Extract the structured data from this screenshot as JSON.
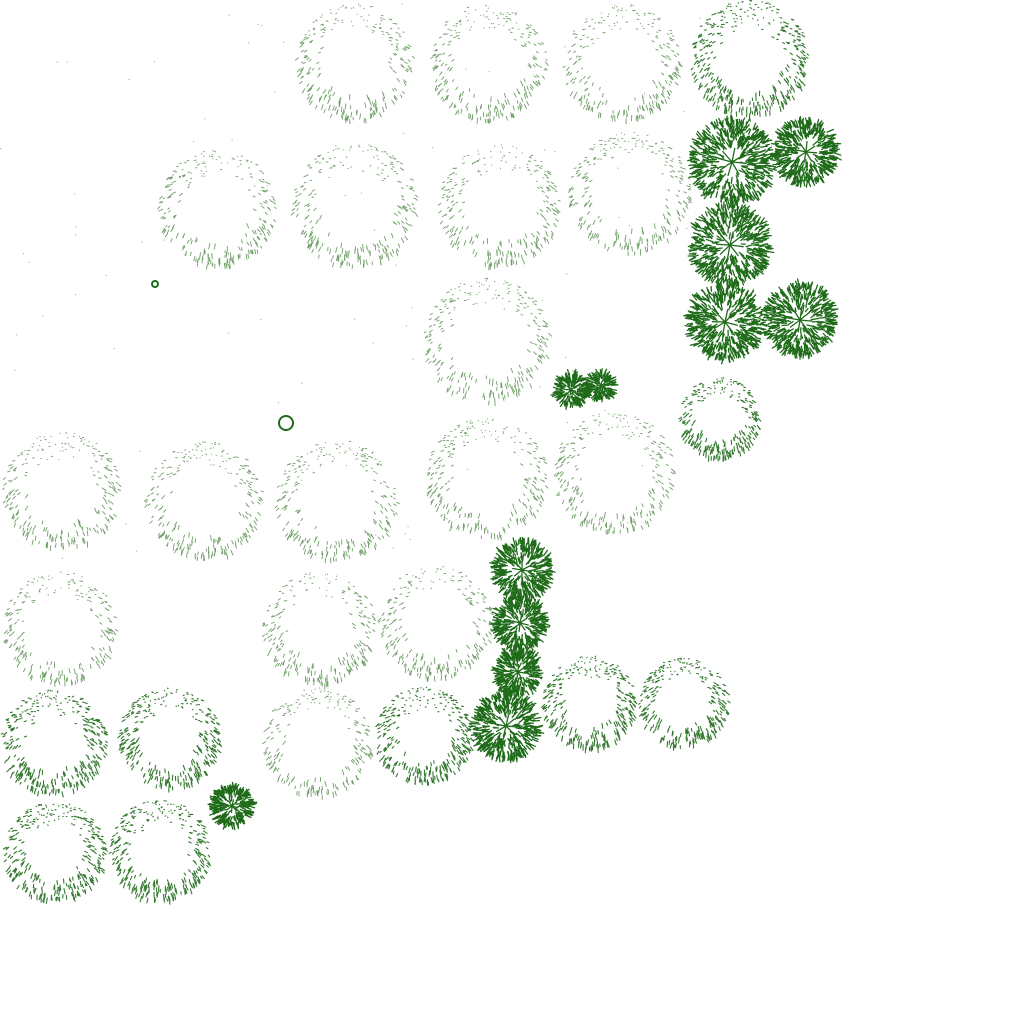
{
  "scene": {
    "kind": "plan-view-tree-symbols",
    "background": "#ffffff",
    "stroke_color": "#1f6b1a",
    "faint_color": "#3f7d34",
    "legend": []
  },
  "tree_styles": {
    "faint": "sparse-dotted-canopy",
    "medium": "medium-density-canopy",
    "dense": "dense-dark-canopy"
  }
}
